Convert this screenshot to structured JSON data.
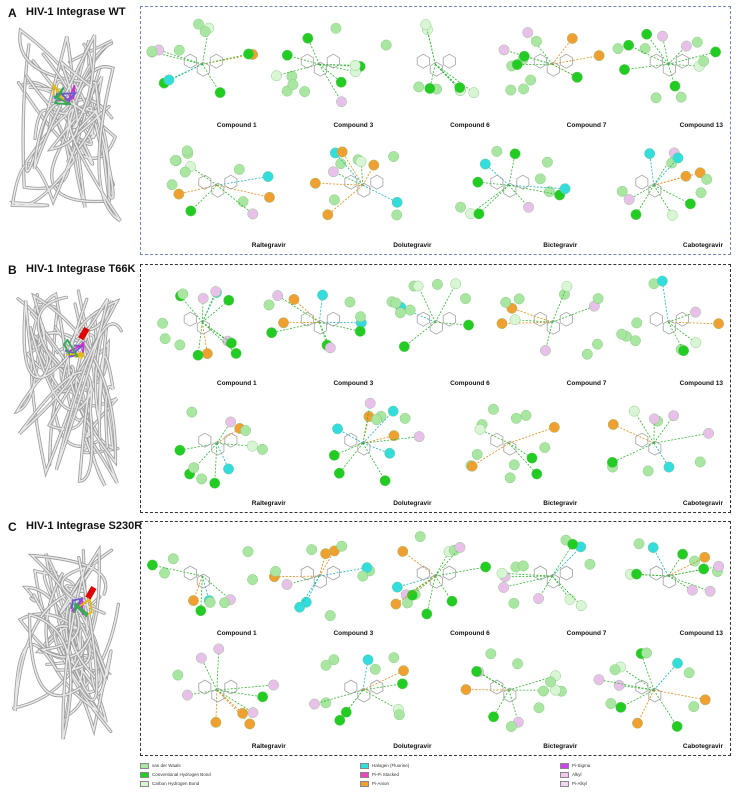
{
  "panels": [
    {
      "letter": "A",
      "title": "HIV-1 Integrase WT",
      "frame_style": "blue",
      "compounds": [
        "Compound 1",
        "Compound 3",
        "Compound 6",
        "Compound 7",
        "Compound 13",
        "Raltegravir",
        "Dolutegravir",
        "Bictegravir",
        "Cabotegravir"
      ],
      "ligand_colors": [
        "#cc33cc",
        "#e6b800",
        "#6a5acd",
        "#33aa55"
      ]
    },
    {
      "letter": "B",
      "title": "HIV-1 Integrase T66K",
      "frame_style": "black",
      "compounds": [
        "Compound 1",
        "Compound 3",
        "Compound 6",
        "Compound 7",
        "Compound 13",
        "Raltegravir",
        "Dolutegravir",
        "Bictegravir",
        "Cabotegravir"
      ],
      "ligand_colors": [
        "#6a5acd",
        "#e6b800",
        "#cc33cc",
        "#33aa55"
      ],
      "mutation_color": "#e00000"
    },
    {
      "letter": "C",
      "title": "HIV-1 Integrase S230R",
      "frame_style": "black",
      "compounds": [
        "Compound 1",
        "Compound 3",
        "Compound 6",
        "Compound 7",
        "Compound 13",
        "Raltegravir",
        "Dolutegravir",
        "Bictegravir",
        "Cabotegravir"
      ],
      "ligand_colors": [
        "#cc33cc",
        "#e6b800",
        "#6a5acd",
        "#33aa55"
      ],
      "mutation_color": "#e00000"
    }
  ],
  "legend": [
    {
      "label": "van der Waals",
      "color": "#a8e6a1"
    },
    {
      "label": "Conventional Hydrogen Bond",
      "color": "#22cc22"
    },
    {
      "label": "Carbon Hydrogen Bond",
      "color": "#d8f5d4"
    },
    {
      "label": "Halogen (Fluorine)",
      "color": "#33dddd"
    },
    {
      "label": "Pi-Pi Stacked",
      "color": "#ee44bb"
    },
    {
      "label": "Pi-Anion",
      "color": "#f0a030"
    },
    {
      "label": "Pi-Sigma",
      "color": "#cc44ee"
    },
    {
      "label": "Alkyl",
      "color": "#f2c6ee"
    },
    {
      "label": "Pi-Alkyl",
      "color": "#f2d8f6"
    }
  ],
  "residue_colors": {
    "vdw": "#a8e6a1",
    "hbond": "#22cc22",
    "carbon_hbond": "#d8f5d4",
    "halogen": "#33dddd",
    "pi_anion": "#f0a030",
    "alkyl": "#e9c0ea"
  }
}
